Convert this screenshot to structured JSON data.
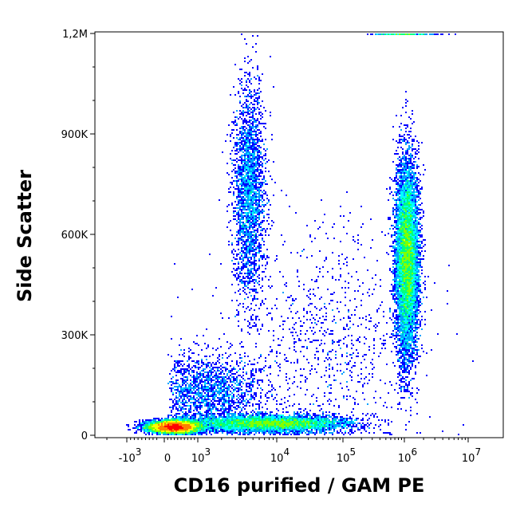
{
  "chart_data": {
    "type": "heatmap",
    "subtype": "flow-cytometry density dot plot",
    "title": "",
    "xlabel": "CD16 purified / GAM PE",
    "ylabel": "Side Scatter",
    "x_scale": "biexponential",
    "xlim": [
      -3000,
      10000000
    ],
    "ylim": [
      0,
      1200000
    ],
    "x_ticks": [
      {
        "value": -1000,
        "base": "-10",
        "exp": "3"
      },
      {
        "value": 0,
        "base": "0",
        "exp": ""
      },
      {
        "value": 1000,
        "base": "10",
        "exp": "3"
      },
      {
        "value": 10000,
        "base": "10",
        "exp": "4"
      },
      {
        "value": 100000,
        "base": "10",
        "exp": "5"
      },
      {
        "value": 1000000,
        "base": "10",
        "exp": "6"
      },
      {
        "value": 10000000,
        "base": "10",
        "exp": "7"
      }
    ],
    "y_ticks": [
      {
        "value": 0,
        "label": "0"
      },
      {
        "value": 300000,
        "label": "300K"
      },
      {
        "value": 600000,
        "label": "600K"
      },
      {
        "value": 900000,
        "label": "900K"
      },
      {
        "value": 1200000,
        "label": "1,2M"
      }
    ],
    "colormap": [
      "#0000ff",
      "#00a0ff",
      "#00ffff",
      "#00ff80",
      "#80ff00",
      "#ffff00",
      "#ff8000",
      "#ff0000"
    ],
    "grid": false,
    "populations": [
      {
        "name": "CD16-negative low SSC",
        "x_center": 300,
        "x_spread": 350,
        "y_center": 25000,
        "y_spread": 9000,
        "count": 9000
      },
      {
        "name": "low SSC band",
        "x_center": 8000,
        "x_spread_decades": 0.55,
        "y_center": 35000,
        "y_spread": 12000,
        "count": 6000
      },
      {
        "name": "intermediate SSC cloud",
        "x_center": 1500,
        "x_spread_decades": 0.35,
        "y_center": 130000,
        "y_spread": 55000,
        "count": 1800
      },
      {
        "name": "high SSC CD16 dim",
        "x_center": 4500,
        "x_spread_decades": 0.1,
        "y_center": 720000,
        "y_spread": 160000,
        "count": 2600
      },
      {
        "name": "high SSC CD16 bright",
        "x_center": 1100000,
        "x_spread_decades": 0.09,
        "y_center": 530000,
        "y_spread": 140000,
        "count": 9000
      },
      {
        "name": "scattered events",
        "x_center": 60000,
        "x_spread_decades": 0.7,
        "y_center": 280000,
        "y_spread": 170000,
        "count": 900
      },
      {
        "name": "saturated top",
        "x_center": 1000000,
        "x_spread_decades": 0.25,
        "y_center": 1200000,
        "y_spread": 0,
        "count": 250
      }
    ]
  }
}
